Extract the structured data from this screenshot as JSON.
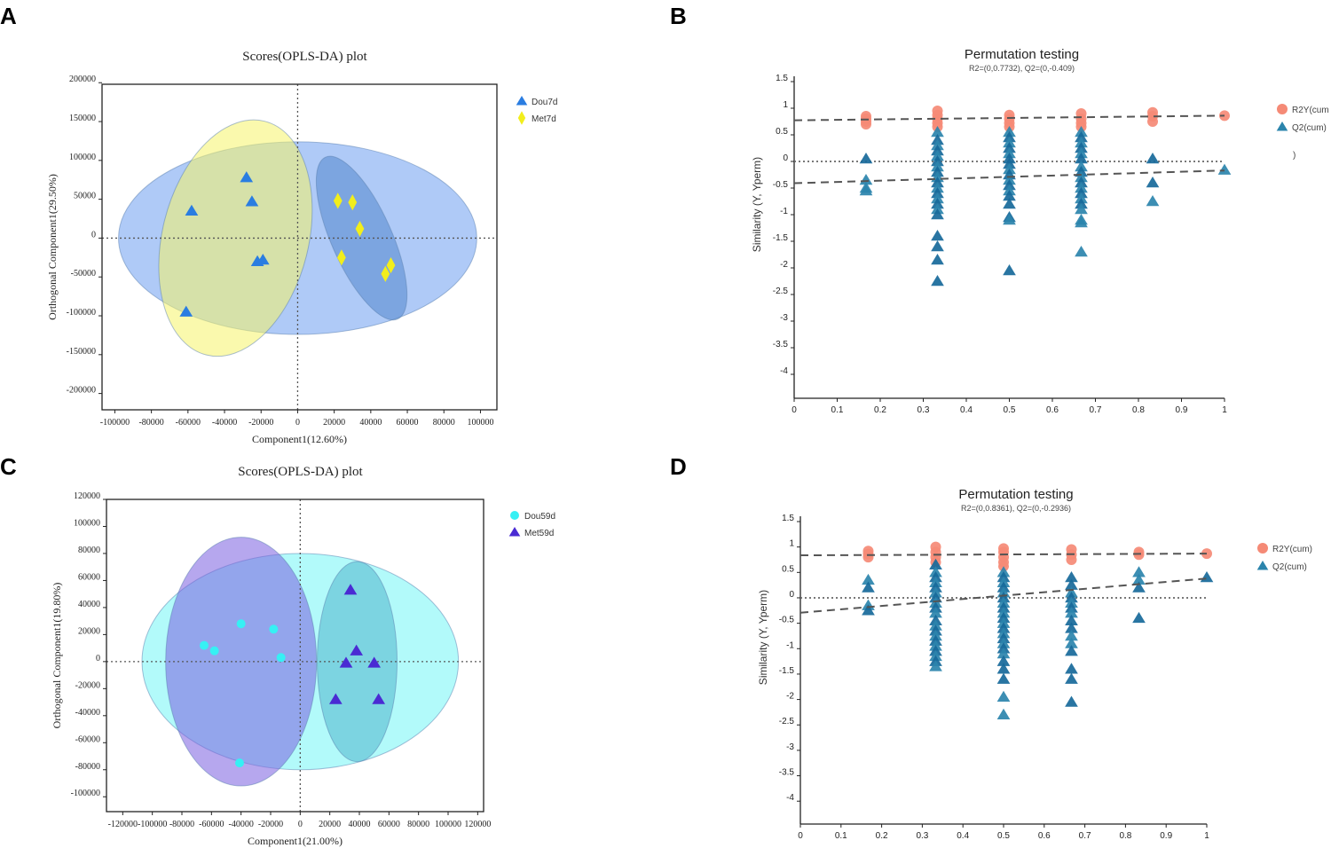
{
  "panel_labels": [
    "A",
    "B",
    "C",
    "D"
  ],
  "chart_data": [
    {
      "panel": "A",
      "type": "scatter",
      "title": "Scores(OPLS-DA) plot",
      "xlabel": "Component1(12.60%)",
      "ylabel": "Orthogonal Component1(29.50%)",
      "xlim": [
        -107000,
        109000
      ],
      "ylim": [
        -221000,
        198000
      ],
      "xticks": [
        -100000,
        -80000,
        -60000,
        -40000,
        -20000,
        0,
        20000,
        40000,
        60000,
        80000,
        100000
      ],
      "yticks": [
        200000,
        150000,
        100000,
        50000,
        0,
        -50000,
        -100000,
        -150000,
        -200000
      ],
      "legend_position": "right",
      "series": [
        {
          "name": "Dou7d",
          "marker": "triangle",
          "color": "#2a7de1",
          "x": [
            -58000,
            -28000,
            -25000,
            -22000,
            -19000,
            -61000
          ],
          "y": [
            35000,
            78000,
            47000,
            -30000,
            -28000,
            -95000
          ]
        },
        {
          "name": "Met7d",
          "marker": "diamond",
          "color": "#f2ee1c",
          "x": [
            22000,
            30000,
            34000,
            24000,
            51000,
            48000
          ],
          "y": [
            48000,
            46000,
            12000,
            -25000,
            -35000,
            -46000
          ]
        }
      ],
      "ellipses": [
        {
          "cx": 0,
          "cy": 0,
          "rx": 98000,
          "ry": 124000,
          "tilt_deg": 0,
          "fill": "#6e9ef0",
          "opacity": 0.55
        },
        {
          "cx": -34000,
          "cy": 0,
          "rx": 40000,
          "ry": 155000,
          "tilt_deg": 14,
          "fill": "#f6f46a",
          "opacity": 0.55
        },
        {
          "cx": 35000,
          "cy": 0,
          "rx": 16500,
          "ry": 114000,
          "tilt_deg": -24,
          "fill": "#3f78c4",
          "opacity": 0.45
        }
      ]
    },
    {
      "panel": "B",
      "type": "scatter",
      "title": "Permutation testing",
      "subtitle": "R2=(0,0.7732), Q2=(0,-0.409)",
      "ylabel": "Similarity (Y, Yperm)",
      "xlim": [
        0,
        1
      ],
      "ylim": [
        -4.45,
        1.5
      ],
      "xticks": [
        "0",
        "0.1",
        "0.2",
        "0.3",
        "0.4",
        "0.5",
        "0.6",
        "0.7",
        "0.8",
        "0.9",
        "1"
      ],
      "yticks": [
        "1.5",
        "1",
        "0.5",
        "0",
        "-0.5",
        "-1",
        "-1.5",
        "-2",
        "-2.5",
        "-3",
        "-3.5",
        "-4"
      ],
      "legend_position": "right",
      "legend_extra": ")",
      "series": [
        {
          "name": "R2Y(cum",
          "marker": "circle",
          "color": "#f58a76",
          "points": [
            [
              0.167,
              0.7
            ],
            [
              0.167,
              0.75
            ],
            [
              0.167,
              0.8
            ],
            [
              0.167,
              0.85
            ],
            [
              0.333,
              0.65
            ],
            [
              0.333,
              0.72
            ],
            [
              0.333,
              0.8
            ],
            [
              0.333,
              0.87
            ],
            [
              0.333,
              0.95
            ],
            [
              0.5,
              0.65
            ],
            [
              0.5,
              0.72
            ],
            [
              0.5,
              0.8
            ],
            [
              0.5,
              0.87
            ],
            [
              0.667,
              0.65
            ],
            [
              0.667,
              0.72
            ],
            [
              0.667,
              0.8
            ],
            [
              0.667,
              0.9
            ],
            [
              0.833,
              0.75
            ],
            [
              0.833,
              0.85
            ],
            [
              0.833,
              0.92
            ],
            [
              1,
              0.86
            ]
          ]
        },
        {
          "name": "Q2(cum)",
          "marker": "triangle",
          "color": "#2b84ac",
          "points": [
            [
              0.167,
              0.05
            ],
            [
              0.167,
              -0.35
            ],
            [
              0.167,
              -0.5
            ],
            [
              0.167,
              -0.55
            ],
            [
              0.333,
              0.55
            ],
            [
              0.333,
              0.4
            ],
            [
              0.333,
              0.3
            ],
            [
              0.333,
              0.2
            ],
            [
              0.333,
              0.1
            ],
            [
              0.333,
              0.0
            ],
            [
              0.333,
              -0.1
            ],
            [
              0.333,
              -0.2
            ],
            [
              0.333,
              -0.3
            ],
            [
              0.333,
              -0.4
            ],
            [
              0.333,
              -0.5
            ],
            [
              0.333,
              -0.6
            ],
            [
              0.333,
              -0.7
            ],
            [
              0.333,
              -0.8
            ],
            [
              0.333,
              -0.9
            ],
            [
              0.333,
              -1.0
            ],
            [
              0.333,
              -1.4
            ],
            [
              0.333,
              -1.6
            ],
            [
              0.333,
              -1.85
            ],
            [
              0.333,
              -2.25
            ],
            [
              0.5,
              0.55
            ],
            [
              0.5,
              0.45
            ],
            [
              0.5,
              0.35
            ],
            [
              0.5,
              0.25
            ],
            [
              0.5,
              0.15
            ],
            [
              0.5,
              0.05
            ],
            [
              0.5,
              -0.05
            ],
            [
              0.5,
              -0.15
            ],
            [
              0.5,
              -0.25
            ],
            [
              0.5,
              -0.35
            ],
            [
              0.5,
              -0.45
            ],
            [
              0.5,
              -0.55
            ],
            [
              0.5,
              -0.65
            ],
            [
              0.5,
              -0.8
            ],
            [
              0.5,
              -1.05
            ],
            [
              0.5,
              -1.1
            ],
            [
              0.5,
              -2.05
            ],
            [
              0.667,
              0.55
            ],
            [
              0.667,
              0.45
            ],
            [
              0.667,
              0.35
            ],
            [
              0.667,
              0.25
            ],
            [
              0.667,
              0.15
            ],
            [
              0.667,
              0.05
            ],
            [
              0.667,
              -0.1
            ],
            [
              0.667,
              -0.2
            ],
            [
              0.667,
              -0.3
            ],
            [
              0.667,
              -0.4
            ],
            [
              0.667,
              -0.5
            ],
            [
              0.667,
              -0.6
            ],
            [
              0.667,
              -0.7
            ],
            [
              0.667,
              -0.8
            ],
            [
              0.667,
              -0.9
            ],
            [
              0.667,
              -1.1
            ],
            [
              0.667,
              -1.15
            ],
            [
              0.667,
              -1.7
            ],
            [
              0.833,
              0.05
            ],
            [
              0.833,
              -0.4
            ],
            [
              0.833,
              -0.75
            ],
            [
              1,
              -0.16
            ]
          ]
        }
      ],
      "regression_lines": [
        {
          "series": "R2Y(cum",
          "intercept": 0.7732,
          "end": 0.86
        },
        {
          "series": "Q2(cum)",
          "intercept": -0.409,
          "end": -0.17
        }
      ],
      "zero_line": true
    },
    {
      "panel": "C",
      "type": "scatter",
      "title": "Scores(OPLS-DA) plot",
      "xlabel": "Component1(21.00%)",
      "ylabel": "Orthogonal Component1(19.80%)",
      "xlim": [
        -131000,
        124000
      ],
      "ylim": [
        -111000,
        120000
      ],
      "xticks": [
        -120000,
        -100000,
        -80000,
        -60000,
        -40000,
        -20000,
        0,
        20000,
        40000,
        60000,
        80000,
        100000,
        120000
      ],
      "yticks": [
        120000,
        100000,
        80000,
        60000,
        40000,
        20000,
        0,
        -20000,
        -40000,
        -60000,
        -80000,
        -100000
      ],
      "legend_position": "right",
      "series": [
        {
          "name": "Dou59d",
          "marker": "circle",
          "color": "#36f0f4",
          "x": [
            -65000,
            -58000,
            -40000,
            -18000,
            -13000,
            -41000
          ],
          "y": [
            12000,
            8000,
            28000,
            24000,
            3000,
            -75000
          ]
        },
        {
          "name": "Met59d",
          "marker": "triangle",
          "color": "#4a2bd3",
          "x": [
            34000,
            38000,
            31000,
            50000,
            24000,
            53000
          ],
          "y": [
            53000,
            8000,
            -1000,
            -1000,
            -28000,
            -28000
          ]
        }
      ],
      "ellipses": [
        {
          "cx": 0,
          "cy": 0,
          "rx": 107000,
          "ry": 80000,
          "tilt_deg": 0,
          "fill": "#7ef6f6",
          "opacity": 0.6
        },
        {
          "cx": -40000,
          "cy": 0,
          "rx": 51000,
          "ry": 92000,
          "tilt_deg": 0,
          "fill": "#7a5fe0",
          "opacity": 0.55
        },
        {
          "cx": 38500,
          "cy": 0,
          "rx": 27000,
          "ry": 74000,
          "tilt_deg": 0,
          "fill": "#3aa6c4",
          "opacity": 0.45
        }
      ]
    },
    {
      "panel": "D",
      "type": "scatter",
      "title": "Permutation testing",
      "subtitle": "R2=(0,0.8361), Q2=(0,-0.2936)",
      "ylabel": "Similarity (Y, Yperm)",
      "xlim": [
        0,
        1
      ],
      "ylim": [
        -4.45,
        1.5
      ],
      "xticks": [
        "0",
        "0.1",
        "0.2",
        "0.3",
        "0.4",
        "0.5",
        "0.6",
        "0.7",
        "0.8",
        "0.9",
        "1"
      ],
      "yticks": [
        "1.5",
        "1",
        "0.5",
        "0",
        "-0.5",
        "-1",
        "-1.5",
        "-2",
        "-2.5",
        "-3",
        "-3.5",
        "-4"
      ],
      "legend_position": "right",
      "series": [
        {
          "name": "R2Y(cum)",
          "marker": "circle",
          "color": "#f58a76",
          "points": [
            [
              0.167,
              0.8
            ],
            [
              0.167,
              0.86
            ],
            [
              0.167,
              0.92
            ],
            [
              0.333,
              0.7
            ],
            [
              0.333,
              0.8
            ],
            [
              0.333,
              0.9
            ],
            [
              0.333,
              1.0
            ],
            [
              0.5,
              0.62
            ],
            [
              0.5,
              0.7
            ],
            [
              0.5,
              0.8
            ],
            [
              0.5,
              0.9
            ],
            [
              0.5,
              0.97
            ],
            [
              0.667,
              0.75
            ],
            [
              0.667,
              0.85
            ],
            [
              0.667,
              0.95
            ],
            [
              0.833,
              0.85
            ],
            [
              0.833,
              0.9
            ],
            [
              1,
              0.87
            ]
          ]
        },
        {
          "name": "Q2(cum)",
          "marker": "triangle",
          "color": "#2b84ac",
          "points": [
            [
              0.167,
              0.35
            ],
            [
              0.167,
              0.2
            ],
            [
              0.167,
              -0.15
            ],
            [
              0.167,
              -0.25
            ],
            [
              0.333,
              0.65
            ],
            [
              0.333,
              0.5
            ],
            [
              0.333,
              0.4
            ],
            [
              0.333,
              0.3
            ],
            [
              0.333,
              0.2
            ],
            [
              0.333,
              0.1
            ],
            [
              0.333,
              0.0
            ],
            [
              0.333,
              -0.1
            ],
            [
              0.333,
              -0.2
            ],
            [
              0.333,
              -0.3
            ],
            [
              0.333,
              -0.45
            ],
            [
              0.333,
              -0.55
            ],
            [
              0.333,
              -0.65
            ],
            [
              0.333,
              -0.75
            ],
            [
              0.333,
              -0.85
            ],
            [
              0.333,
              -0.95
            ],
            [
              0.333,
              -1.05
            ],
            [
              0.333,
              -1.15
            ],
            [
              0.333,
              -1.25
            ],
            [
              0.333,
              -1.35
            ],
            [
              0.5,
              0.5
            ],
            [
              0.5,
              0.4
            ],
            [
              0.5,
              0.3
            ],
            [
              0.5,
              0.2
            ],
            [
              0.5,
              0.1
            ],
            [
              0.5,
              0.0
            ],
            [
              0.5,
              -0.1
            ],
            [
              0.5,
              -0.2
            ],
            [
              0.5,
              -0.3
            ],
            [
              0.5,
              -0.4
            ],
            [
              0.5,
              -0.5
            ],
            [
              0.5,
              -0.6
            ],
            [
              0.5,
              -0.7
            ],
            [
              0.5,
              -0.8
            ],
            [
              0.5,
              -0.9
            ],
            [
              0.5,
              -1.0
            ],
            [
              0.5,
              -1.1
            ],
            [
              0.5,
              -1.25
            ],
            [
              0.5,
              -1.4
            ],
            [
              0.5,
              -1.6
            ],
            [
              0.5,
              -1.95
            ],
            [
              0.5,
              -2.3
            ],
            [
              0.667,
              0.4
            ],
            [
              0.667,
              0.25
            ],
            [
              0.667,
              0.1
            ],
            [
              0.667,
              0.0
            ],
            [
              0.667,
              -0.1
            ],
            [
              0.667,
              -0.2
            ],
            [
              0.667,
              -0.3
            ],
            [
              0.667,
              -0.45
            ],
            [
              0.667,
              -0.6
            ],
            [
              0.667,
              -0.75
            ],
            [
              0.667,
              -0.9
            ],
            [
              0.667,
              -1.05
            ],
            [
              0.667,
              -1.4
            ],
            [
              0.667,
              -1.6
            ],
            [
              0.667,
              -2.05
            ],
            [
              0.833,
              0.5
            ],
            [
              0.833,
              0.35
            ],
            [
              0.833,
              0.2
            ],
            [
              0.833,
              -0.4
            ],
            [
              1,
              0.4
            ]
          ]
        }
      ],
      "regression_lines": [
        {
          "series": "R2Y(cum)",
          "intercept": 0.8361,
          "end": 0.87
        },
        {
          "series": "Q2(cum)",
          "intercept": -0.2936,
          "end": 0.38
        }
      ],
      "zero_line": true
    }
  ]
}
